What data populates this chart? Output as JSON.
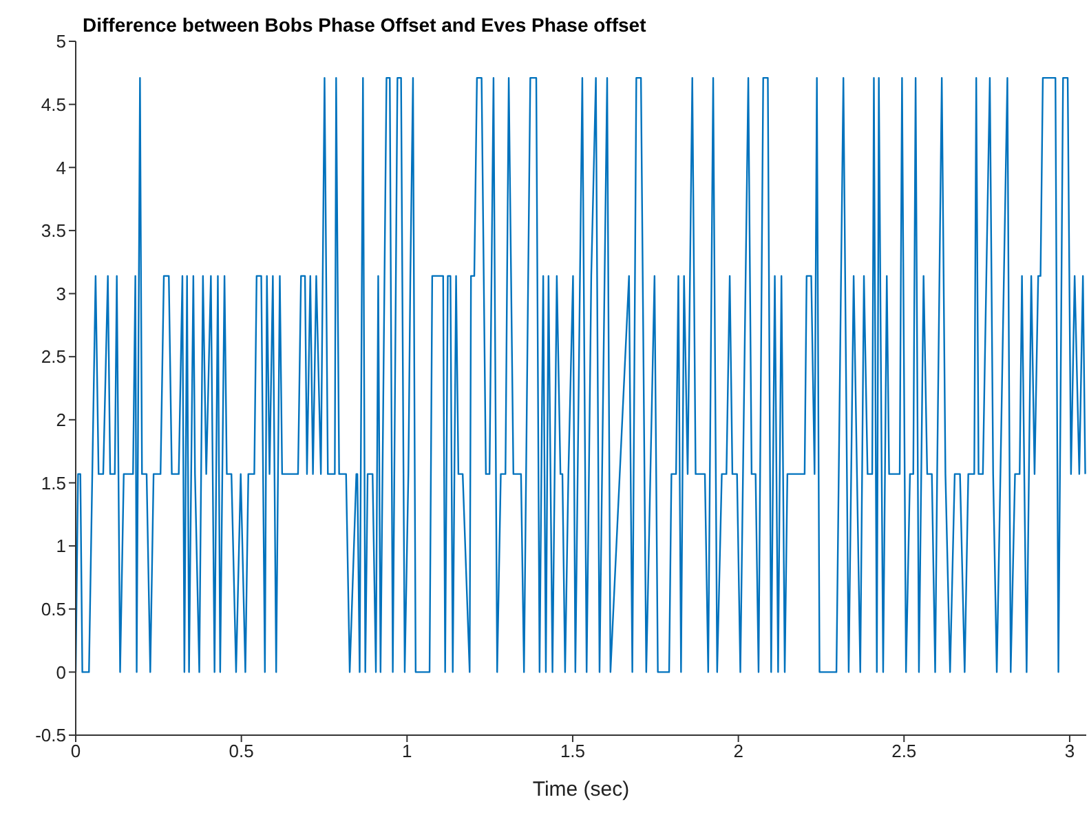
{
  "chart_data": {
    "type": "line",
    "title": "Difference between Bobs Phase Offset and Eves Phase offset",
    "xlabel": "Time (sec)",
    "xlim": [
      0,
      3.05
    ],
    "xticks": [
      0,
      0.5,
      1,
      1.5,
      2,
      2.5,
      3
    ],
    "ylim": [
      -0.5,
      5
    ],
    "yticks": [
      -0.5,
      0,
      0.5,
      1,
      1.5,
      2,
      2.5,
      3,
      3.5,
      4,
      4.5,
      5
    ],
    "grid": false,
    "legend": false,
    "marker": "none",
    "line_style": "solid",
    "x": [
      0,
      0.007,
      0.014,
      0.02,
      0.04,
      0.06,
      0.069,
      0.083,
      0.097,
      0.104,
      0.118,
      0.124,
      0.134,
      0.145,
      0.173,
      0.18,
      0.184,
      0.194,
      0.2,
      0.214,
      0.225,
      0.235,
      0.256,
      0.266,
      0.281,
      0.29,
      0.311,
      0.322,
      0.328,
      0.336,
      0.342,
      0.355,
      0.36,
      0.373,
      0.384,
      0.394,
      0.408,
      0.419,
      0.429,
      0.436,
      0.449,
      0.456,
      0.47,
      0.484,
      0.498,
      0.512,
      0.521,
      0.539,
      0.546,
      0.56,
      0.571,
      0.577,
      0.585,
      0.595,
      0.605,
      0.616,
      0.623,
      0.671,
      0.68,
      0.692,
      0.698,
      0.708,
      0.716,
      0.726,
      0.74,
      0.751,
      0.761,
      0.782,
      0.786,
      0.795,
      0.816,
      0.827,
      0.847,
      0.85,
      0.857,
      0.867,
      0.874,
      0.881,
      0.896,
      0.906,
      0.913,
      0.92,
      0.938,
      0.948,
      0.957,
      0.971,
      0.982,
      0.993,
      1.004,
      1.01,
      1.018,
      1.026,
      1.068,
      1.076,
      1.109,
      1.115,
      1.123,
      1.131,
      1.138,
      1.148,
      1.155,
      1.168,
      1.189,
      1.193,
      1.203,
      1.211,
      1.225,
      1.238,
      1.249,
      1.261,
      1.272,
      1.283,
      1.297,
      1.307,
      1.321,
      1.344,
      1.353,
      1.372,
      1.39,
      1.4,
      1.411,
      1.419,
      1.427,
      1.439,
      1.452,
      1.463,
      1.469,
      1.477,
      1.487,
      1.501,
      1.508,
      1.529,
      1.542,
      1.556,
      1.57,
      1.581,
      1.604,
      1.614,
      1.67,
      1.68,
      1.692,
      1.706,
      1.722,
      1.747,
      1.757,
      1.791,
      1.798,
      1.812,
      1.819,
      1.827,
      1.836,
      1.847,
      1.861,
      1.871,
      1.899,
      1.909,
      1.924,
      1.936,
      1.95,
      1.964,
      1.974,
      1.982,
      1.996,
      2.006,
      2.03,
      2.04,
      2.052,
      2.061,
      2.075,
      2.089,
      2.099,
      2.11,
      2.12,
      2.13,
      2.14,
      2.148,
      2.2,
      2.206,
      2.22,
      2.23,
      2.237,
      2.245,
      2.296,
      2.317,
      2.333,
      2.348,
      2.368,
      2.379,
      2.39,
      2.404,
      2.409,
      2.418,
      2.424,
      2.437,
      2.448,
      2.455,
      2.487,
      2.494,
      2.506,
      2.518,
      2.528,
      2.535,
      2.545,
      2.559,
      2.57,
      2.584,
      2.594,
      2.6,
      2.614,
      2.625,
      2.639,
      2.653,
      2.669,
      2.683,
      2.694,
      2.712,
      2.718,
      2.725,
      2.738,
      2.759,
      2.769,
      2.78,
      2.791,
      2.812,
      2.822,
      2.835,
      2.849,
      2.856,
      2.87,
      2.884,
      2.894,
      2.905,
      2.912,
      2.919,
      2.943,
      2.957,
      2.966,
      2.98,
      2.994,
      3.004,
      3.015,
      3.029,
      3.04,
      3.047
    ],
    "series": [
      {
        "color": "#0072bd",
        "values": [
          0,
          1.57,
          1.57,
          0,
          0,
          3.14,
          1.57,
          1.57,
          3.14,
          1.57,
          1.57,
          3.14,
          0,
          1.57,
          1.57,
          3.14,
          0,
          4.71,
          1.57,
          1.57,
          0,
          1.57,
          1.57,
          3.14,
          3.14,
          1.57,
          1.57,
          3.14,
          0,
          3.14,
          0,
          3.14,
          1.57,
          0,
          3.14,
          1.57,
          3.14,
          0,
          3.14,
          0,
          3.14,
          1.57,
          1.57,
          0,
          1.57,
          0,
          1.57,
          1.57,
          3.14,
          3.14,
          0,
          3.14,
          1.57,
          3.14,
          0,
          3.14,
          1.57,
          1.57,
          3.14,
          3.14,
          1.57,
          3.14,
          1.57,
          3.14,
          1.57,
          4.71,
          1.57,
          1.57,
          4.71,
          1.57,
          1.57,
          0,
          1.57,
          1.57,
          0,
          4.71,
          0,
          1.57,
          1.57,
          0,
          3.14,
          0,
          4.71,
          4.71,
          0,
          4.71,
          4.71,
          0,
          1.57,
          3.14,
          4.71,
          0,
          0,
          3.14,
          3.14,
          0,
          3.14,
          3.14,
          0,
          3.14,
          1.57,
          1.57,
          0,
          3.14,
          3.14,
          4.71,
          4.71,
          1.57,
          1.57,
          4.71,
          0,
          1.57,
          1.57,
          4.71,
          1.57,
          1.57,
          0,
          4.71,
          4.71,
          0,
          3.14,
          0,
          3.14,
          0,
          3.14,
          1.57,
          1.57,
          0,
          1.57,
          3.14,
          0,
          4.71,
          0,
          3.14,
          4.71,
          0,
          4.71,
          0,
          3.14,
          0,
          4.71,
          4.71,
          0,
          3.14,
          0,
          0,
          1.57,
          1.57,
          3.14,
          0,
          3.14,
          1.57,
          4.71,
          1.57,
          1.57,
          0,
          4.71,
          0,
          1.57,
          1.57,
          3.14,
          1.57,
          1.57,
          0,
          4.71,
          1.57,
          1.57,
          0,
          4.71,
          4.71,
          0,
          3.14,
          0,
          3.14,
          0,
          1.57,
          1.57,
          3.14,
          3.14,
          1.57,
          4.71,
          0,
          0,
          4.71,
          0,
          3.14,
          0,
          3.14,
          1.57,
          1.57,
          4.71,
          0,
          4.71,
          0,
          3.14,
          1.57,
          1.57,
          4.71,
          0,
          1.57,
          1.57,
          4.71,
          0,
          3.14,
          1.57,
          1.57,
          0,
          1.57,
          4.71,
          1.57,
          0,
          1.57,
          1.57,
          0,
          1.57,
          1.57,
          4.71,
          1.57,
          1.57,
          4.71,
          1.57,
          0,
          1.57,
          4.71,
          0,
          1.57,
          1.57,
          3.14,
          0,
          3.14,
          1.57,
          3.14,
          3.14,
          4.71,
          4.71,
          4.71,
          0,
          4.71,
          4.71,
          1.57,
          3.14,
          1.57,
          3.14,
          1.57
        ]
      }
    ]
  }
}
